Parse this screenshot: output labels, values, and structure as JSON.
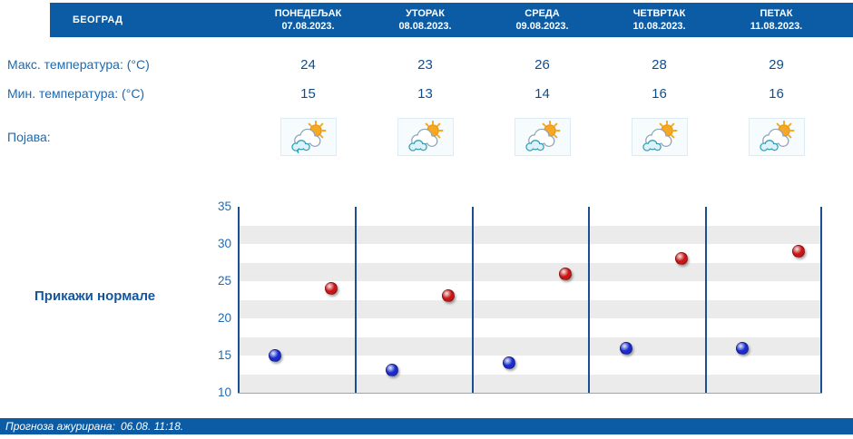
{
  "header": {
    "location": "БЕОГРАД",
    "days": [
      {
        "name": "ПОНЕДЕЉАК",
        "date": "07.08.2023."
      },
      {
        "name": "УТОРАК",
        "date": "08.08.2023."
      },
      {
        "name": "СРЕДА",
        "date": "09.08.2023."
      },
      {
        "name": "ЧЕТВРТАК",
        "date": "10.08.2023."
      },
      {
        "name": "ПЕТАК",
        "date": "11.08.2023."
      }
    ]
  },
  "rows": {
    "max_label": "Макс. температура: (°C)",
    "max_values": [
      "24",
      "23",
      "26",
      "28",
      "29"
    ],
    "min_label": "Мин. температура: (°C)",
    "min_values": [
      "15",
      "13",
      "14",
      "16",
      "16"
    ],
    "phenomenon_label": "Појава:",
    "icons": [
      "sun-behind-rain-cloud",
      "sun-behind-cloud",
      "sun-behind-cloud",
      "sun-behind-cloud",
      "sun-behind-cloud"
    ]
  },
  "controls": {
    "show_normals_label": "Прикажи нормале"
  },
  "footer": {
    "updated_label": "Прогноза ажурирана:",
    "updated_value": "06.08. 11:18."
  },
  "colors": {
    "header_bg": "#0b5ca5",
    "label_blue": "#1a6ab5",
    "value_blue": "#0f4e8e",
    "divider_blue": "#1b4f94",
    "max_dot": "#c81616",
    "min_dot": "#1a2bcd"
  },
  "chart_data": {
    "type": "scatter",
    "categories": [
      "07.08.2023.",
      "08.08.2023.",
      "09.08.2023.",
      "10.08.2023.",
      "11.08.2023."
    ],
    "series": [
      {
        "name": "Макс. температура (°C)",
        "color": "#c81616",
        "values": [
          24,
          23,
          26,
          28,
          29
        ]
      },
      {
        "name": "Мин. температура (°C)",
        "color": "#1a2bcd",
        "values": [
          15,
          13,
          14,
          16,
          16
        ]
      }
    ],
    "ylim": [
      10,
      35
    ],
    "yticks": [
      35,
      30,
      25,
      20,
      15,
      10
    ],
    "grid": "horizontal-bands",
    "legend": "none"
  }
}
